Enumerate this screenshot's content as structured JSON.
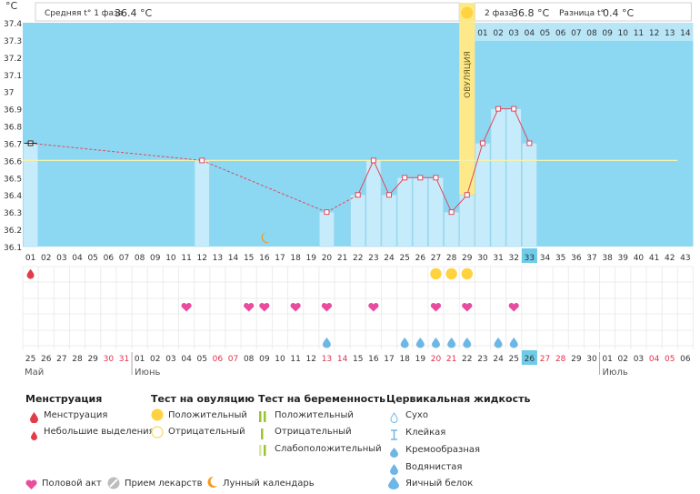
{
  "colors": {
    "plot_bg": "#8cd8f2",
    "bar": "#c6ecfb",
    "bar_edge": "#9fd6ee",
    "line": "#e0485e",
    "ovulation": "#fde98a",
    "ovulation_dot": "#ffd23f",
    "heart": "#e94c9e",
    "drop": "#6db7e6",
    "menstruation": "#e33b4a",
    "sun": "#f6c928",
    "grid_text": "#555555",
    "red_date": "#e0314b",
    "highlight": "#6fcce9"
  },
  "header": {
    "unit": "°C",
    "phase1_label": "Средняя t° 1 фаза",
    "phase1_value": "36.4 °C",
    "phase2_label": "2 фаза",
    "phase2_value": "36.8 °C",
    "diff_label": "Разница t°",
    "diff_value": "0.4 °C",
    "ovulation_label": "ОВУЛЯЦИЯ"
  },
  "chart_data": {
    "type": "bar",
    "ylim": [
      36.1,
      37.4
    ],
    "y_ticks": [
      "37.4",
      "37.3",
      "37.2",
      "37.1",
      "37",
      "36.9",
      "36.8",
      "36.7",
      "36.6",
      "36.5",
      "36.4",
      "36.3",
      "36.2",
      "36.1"
    ],
    "cycle_days": [
      "01",
      "02",
      "03",
      "04",
      "05",
      "06",
      "07",
      "08",
      "09",
      "10",
      "11",
      "12",
      "13",
      "14",
      "15",
      "16",
      "17",
      "18",
      "19",
      "20",
      "21",
      "22",
      "23",
      "24",
      "25",
      "26",
      "27",
      "28",
      "29",
      "30",
      "31",
      "32",
      "33",
      "34",
      "35",
      "36",
      "37",
      "38",
      "39",
      "40",
      "41",
      "42",
      "43"
    ],
    "highlight_day": "33",
    "ovulation_day": 29,
    "coverline": 36.6,
    "top_phase2_days": [
      "01",
      "02",
      "03",
      "04",
      "05",
      "06",
      "07",
      "08",
      "09",
      "10",
      "11",
      "12",
      "13",
      "14"
    ],
    "temperatures": [
      {
        "day": 1,
        "value": 36.7
      },
      {
        "day": 12,
        "value": 36.6
      },
      {
        "day": 20,
        "value": 36.3
      },
      {
        "day": 22,
        "value": 36.4
      },
      {
        "day": 23,
        "value": 36.6
      },
      {
        "day": 24,
        "value": 36.4
      },
      {
        "day": 25,
        "value": 36.5
      },
      {
        "day": 26,
        "value": 36.5
      },
      {
        "day": 27,
        "value": 36.5
      },
      {
        "day": 28,
        "value": 36.3
      },
      {
        "day": 29,
        "value": 36.4
      },
      {
        "day": 30,
        "value": 36.7
      },
      {
        "day": 31,
        "value": 36.9
      },
      {
        "day": 32,
        "value": 36.9
      },
      {
        "day": 33,
        "value": 36.7
      }
    ],
    "dashed_segments": [
      [
        1,
        12
      ],
      [
        12,
        20
      ]
    ],
    "menstruation_days": [
      1
    ],
    "ovulation_test_positive_days": [
      27,
      28,
      29
    ],
    "intercourse_days": [
      11,
      15,
      16,
      18,
      20,
      23,
      27,
      29,
      32
    ],
    "cervical_fluid_days": [
      20,
      25,
      26,
      27,
      28,
      29,
      31,
      32
    ],
    "moon_days": [
      16
    ],
    "calendar_dates": [
      {
        "d": "25",
        "red": false
      },
      {
        "d": "26",
        "red": false
      },
      {
        "d": "27",
        "red": false
      },
      {
        "d": "28",
        "red": false
      },
      {
        "d": "29",
        "red": false
      },
      {
        "d": "30",
        "red": true
      },
      {
        "d": "31",
        "red": true
      },
      {
        "d": "01",
        "red": false
      },
      {
        "d": "02",
        "red": false
      },
      {
        "d": "03",
        "red": false
      },
      {
        "d": "04",
        "red": false
      },
      {
        "d": "05",
        "red": false
      },
      {
        "d": "06",
        "red": true
      },
      {
        "d": "07",
        "red": true
      },
      {
        "d": "08",
        "red": false
      },
      {
        "d": "09",
        "red": false
      },
      {
        "d": "10",
        "red": false
      },
      {
        "d": "11",
        "red": false
      },
      {
        "d": "12",
        "red": false
      },
      {
        "d": "13",
        "red": true
      },
      {
        "d": "14",
        "red": true
      },
      {
        "d": "15",
        "red": false
      },
      {
        "d": "16",
        "red": false
      },
      {
        "d": "17",
        "red": false
      },
      {
        "d": "18",
        "red": false
      },
      {
        "d": "19",
        "red": false
      },
      {
        "d": "20",
        "red": true
      },
      {
        "d": "21",
        "red": true
      },
      {
        "d": "22",
        "red": false
      },
      {
        "d": "23",
        "red": false
      },
      {
        "d": "24",
        "red": false
      },
      {
        "d": "25",
        "red": false
      },
      {
        "d": "26",
        "red": false
      },
      {
        "d": "27",
        "red": true
      },
      {
        "d": "28",
        "red": true
      },
      {
        "d": "29",
        "red": false
      },
      {
        "d": "30",
        "red": false
      },
      {
        "d": "01",
        "red": false
      },
      {
        "d": "02",
        "red": false
      },
      {
        "d": "03",
        "red": false
      },
      {
        "d": "04",
        "red": true
      },
      {
        "d": "05",
        "red": true
      },
      {
        "d": "06",
        "red": false
      }
    ],
    "months": [
      {
        "label": "Май",
        "start_day": 1
      },
      {
        "label": "Июнь",
        "start_day": 8
      },
      {
        "label": "Июль",
        "start_day": 38
      }
    ]
  },
  "legend": {
    "menstruation": {
      "title": "Менструация",
      "items": [
        "Менструация",
        "Небольшие выделения"
      ]
    },
    "ovulation_test": {
      "title": "Тест на овуляцию",
      "items": [
        "Положительный",
        "Отрицательный"
      ]
    },
    "pregnancy_test": {
      "title": "Тест на беременность",
      "items": [
        "Положительный",
        "Отрицательный",
        "Слабоположительный"
      ]
    },
    "cervical": {
      "title": "Цервикальная жидкость",
      "items": [
        "Сухо",
        "Клейкая",
        "Кремообразная",
        "Водянистая",
        "Яичный белок"
      ]
    },
    "bottom": {
      "intercourse": "Половой акт",
      "medicine": "Прием лекарств",
      "moon": "Лунный календарь"
    }
  }
}
